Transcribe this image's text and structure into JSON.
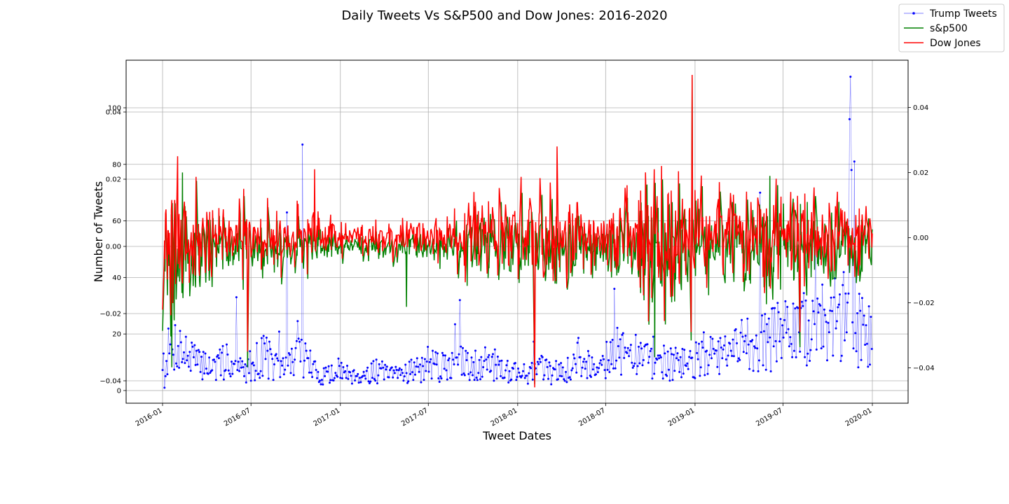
{
  "chart_data": {
    "type": "line",
    "title": "Daily Tweets Vs S&P500 and Dow Jones: 2016-2020",
    "xlabel": "Tweet Dates",
    "ylabel": "Number of Tweets",
    "grid": true,
    "legend_position": "top-right",
    "x_ticks": [
      "2016-01",
      "2016-07",
      "2017-01",
      "2017-07",
      "2018-01",
      "2018-07",
      "2019-01",
      "2019-07",
      "2020-01"
    ],
    "axes": {
      "tweets": {
        "ylim": [
          -2,
          100
        ],
        "ticks": [
          0,
          20,
          40,
          60,
          80,
          100
        ]
      },
      "sp500_overlay": {
        "ylim": [
          -0.045,
          0.045
        ],
        "ticks": [
          -0.04,
          -0.02,
          0.0,
          0.02,
          0.04
        ]
      },
      "dow_right": {
        "ylim": [
          -0.05,
          0.05
        ],
        "ticks": [
          -0.04,
          -0.02,
          0.0,
          0.02,
          0.04
        ]
      }
    },
    "tick_labels": {
      "tweets": [
        "0",
        "20",
        "40",
        "60",
        "80",
        "100"
      ],
      "sp500_overlay": [
        "−0.04",
        "−0.02",
        "0.00",
        "0.02",
        "0.04"
      ],
      "dow_right": [
        "−0.04",
        "−0.02",
        "0.00",
        "0.02",
        "0.04"
      ]
    },
    "series": [
      {
        "name": "Trump Tweets",
        "color": "#0000ff",
        "style": "line-with-markers",
        "axis": "tweets",
        "points": [
          [
            "2016-01-01",
            11
          ],
          [
            "2016-01-15",
            14
          ],
          [
            "2016-02-01",
            17
          ],
          [
            "2016-02-15",
            13
          ],
          [
            "2016-03-01",
            12
          ],
          [
            "2016-03-15",
            9
          ],
          [
            "2016-04-01",
            10
          ],
          [
            "2016-04-15",
            8
          ],
          [
            "2016-05-01",
            9
          ],
          [
            "2016-05-15",
            12
          ],
          [
            "2016-06-01",
            8
          ],
          [
            "2016-06-15",
            7
          ],
          [
            "2016-07-01",
            9
          ],
          [
            "2016-07-15",
            11
          ],
          [
            "2016-08-01",
            13
          ],
          [
            "2016-08-15",
            9
          ],
          [
            "2016-09-01",
            7
          ],
          [
            "2016-09-15",
            10
          ],
          [
            "2016-10-01",
            12
          ],
          [
            "2016-10-15",
            13
          ],
          [
            "2016-11-01",
            9
          ],
          [
            "2016-11-15",
            5
          ],
          [
            "2016-12-01",
            6
          ],
          [
            "2016-12-15",
            5
          ],
          [
            "2017-01-01",
            6
          ],
          [
            "2017-01-15",
            7
          ],
          [
            "2017-02-01",
            6
          ],
          [
            "2017-02-15",
            5
          ],
          [
            "2017-03-01",
            6
          ],
          [
            "2017-03-15",
            7
          ],
          [
            "2017-04-01",
            6
          ],
          [
            "2017-04-15",
            5
          ],
          [
            "2017-05-01",
            6
          ],
          [
            "2017-05-15",
            7
          ],
          [
            "2017-06-01",
            8
          ],
          [
            "2017-06-15",
            7
          ],
          [
            "2017-07-01",
            8
          ],
          [
            "2017-07-15",
            9
          ],
          [
            "2017-08-01",
            8
          ],
          [
            "2017-08-15",
            9
          ],
          [
            "2017-09-01",
            10
          ],
          [
            "2017-09-15",
            9
          ],
          [
            "2017-10-01",
            10
          ],
          [
            "2017-10-15",
            9
          ],
          [
            "2017-11-01",
            10
          ],
          [
            "2017-11-15",
            9
          ],
          [
            "2017-12-01",
            8
          ],
          [
            "2017-12-15",
            7
          ],
          [
            "2018-01-01",
            7
          ],
          [
            "2018-01-15",
            6
          ],
          [
            "2018-02-01",
            7
          ],
          [
            "2018-02-15",
            8
          ],
          [
            "2018-03-01",
            7
          ],
          [
            "2018-03-15",
            6
          ],
          [
            "2018-04-01",
            7
          ],
          [
            "2018-04-15",
            8
          ],
          [
            "2018-05-01",
            9
          ],
          [
            "2018-05-15",
            10
          ],
          [
            "2018-06-01",
            9
          ],
          [
            "2018-06-15",
            10
          ],
          [
            "2018-07-01",
            12
          ],
          [
            "2018-07-15",
            13
          ],
          [
            "2018-08-01",
            14
          ],
          [
            "2018-08-15",
            13
          ],
          [
            "2018-09-01",
            12
          ],
          [
            "2018-09-15",
            11
          ],
          [
            "2018-10-01",
            12
          ],
          [
            "2018-10-15",
            11
          ],
          [
            "2018-11-01",
            10
          ],
          [
            "2018-11-15",
            9
          ],
          [
            "2018-12-01",
            10
          ],
          [
            "2018-12-15",
            9
          ],
          [
            "2019-01-01",
            10
          ],
          [
            "2019-01-15",
            13
          ],
          [
            "2019-02-01",
            12
          ],
          [
            "2019-02-15",
            11
          ],
          [
            "2019-03-01",
            12
          ],
          [
            "2019-03-15",
            14
          ],
          [
            "2019-04-01",
            15
          ],
          [
            "2019-04-15",
            16
          ],
          [
            "2019-05-01",
            17
          ],
          [
            "2019-05-15",
            18
          ],
          [
            "2019-06-01",
            17
          ],
          [
            "2019-06-15",
            19
          ],
          [
            "2019-07-01",
            20
          ],
          [
            "2019-07-15",
            21
          ],
          [
            "2019-08-01",
            19
          ],
          [
            "2019-08-15",
            22
          ],
          [
            "2019-09-01",
            21
          ],
          [
            "2019-09-15",
            23
          ],
          [
            "2019-10-01",
            24
          ],
          [
            "2019-10-15",
            25
          ],
          [
            "2019-11-01",
            26
          ],
          [
            "2019-11-15",
            24
          ],
          [
            "2019-12-01",
            23
          ],
          [
            "2019-12-15",
            22
          ],
          [
            "2020-01-01",
            18
          ]
        ],
        "peaks": [
          [
            "2016-01-05",
            1
          ],
          [
            "2016-06-01",
            33
          ],
          [
            "2016-09-14",
            63
          ],
          [
            "2016-10-15",
            87
          ],
          [
            "2017-09-05",
            32
          ],
          [
            "2019-05-15",
            70
          ],
          [
            "2019-11-15",
            96
          ],
          [
            "2019-11-18",
            111
          ],
          [
            "2019-11-20",
            78
          ],
          [
            "2019-11-25",
            81
          ]
        ]
      },
      {
        "name": "s&p500",
        "color": "#008000",
        "style": "line",
        "axis": "sp500_overlay",
        "volatility": [
          [
            "2016-01",
            0.025
          ],
          [
            "2016-04",
            0.01
          ],
          [
            "2016-07",
            0.009
          ],
          [
            "2016-10",
            0.007
          ],
          [
            "2017-01",
            0.004
          ],
          [
            "2017-07",
            0.004
          ],
          [
            "2018-01",
            0.012
          ],
          [
            "2018-04",
            0.01
          ],
          [
            "2018-07",
            0.006
          ],
          [
            "2018-10",
            0.018
          ],
          [
            "2019-01",
            0.015
          ],
          [
            "2019-05",
            0.012
          ],
          [
            "2019-08",
            0.015
          ],
          [
            "2020-01",
            0.007
          ]
        ],
        "extremes": [
          [
            "2016-01-20",
            -0.036
          ],
          [
            "2016-02-11",
            0.022
          ],
          [
            "2016-06-24",
            -0.036
          ],
          [
            "2016-11-09",
            0.011
          ],
          [
            "2017-05-17",
            -0.018
          ],
          [
            "2018-02-05",
            -0.041
          ],
          [
            "2018-10-10",
            -0.033
          ],
          [
            "2018-12-24",
            -0.028
          ],
          [
            "2018-12-26",
            0.05
          ],
          [
            "2019-08-05",
            -0.03
          ],
          [
            "2019-06-04",
            0.021
          ]
        ]
      },
      {
        "name": "Dow Jones",
        "color": "#ff0000",
        "style": "line",
        "axis": "dow_right",
        "volatility": [
          [
            "2016-01",
            0.022
          ],
          [
            "2016-04",
            0.01
          ],
          [
            "2016-07",
            0.009
          ],
          [
            "2016-10",
            0.008
          ],
          [
            "2017-01",
            0.005
          ],
          [
            "2017-07",
            0.005
          ],
          [
            "2018-01",
            0.014
          ],
          [
            "2018-04",
            0.012
          ],
          [
            "2018-07",
            0.007
          ],
          [
            "2018-10",
            0.02
          ],
          [
            "2019-01",
            0.016
          ],
          [
            "2019-05",
            0.012
          ],
          [
            "2019-08",
            0.015
          ],
          [
            "2020-01",
            0.008
          ]
        ],
        "extremes": [
          [
            "2016-02-01",
            0.025
          ],
          [
            "2016-06-24",
            -0.035
          ],
          [
            "2016-11-09",
            0.021
          ],
          [
            "2018-02-05",
            -0.046
          ],
          [
            "2018-03-23",
            0.028
          ],
          [
            "2018-12-24",
            -0.029
          ],
          [
            "2018-12-26",
            0.05
          ],
          [
            "2019-08-05",
            -0.029
          ]
        ]
      }
    ]
  }
}
